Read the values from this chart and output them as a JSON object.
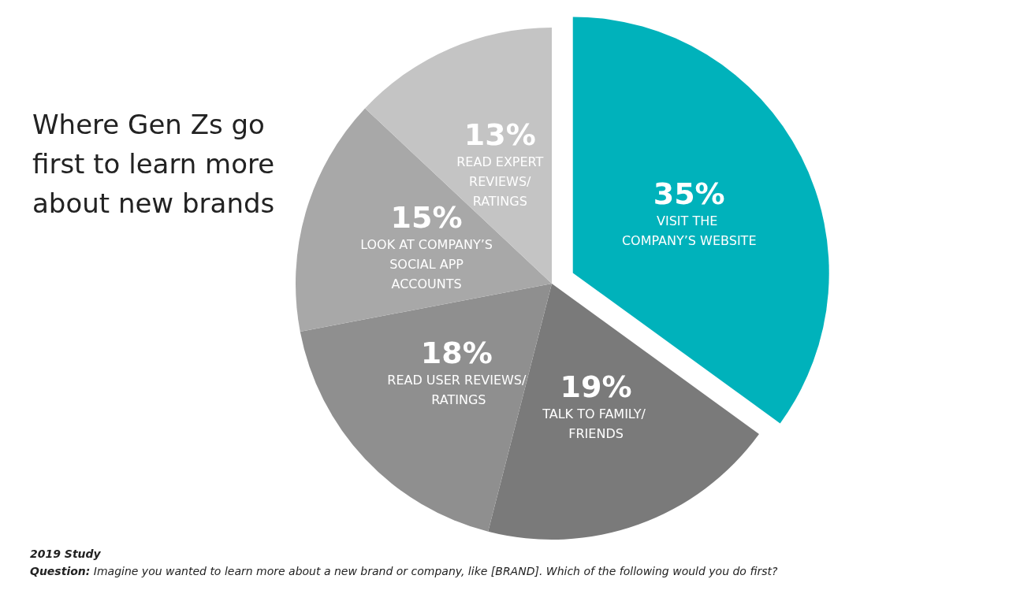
{
  "chart_data": {
    "type": "pie",
    "title": "Where Gen Zs go first to learn more about new brands",
    "categories": [
      "VISIT THE COMPANY’S WEBSITE",
      "TALK TO FAMILY/ FRIENDS",
      "READ USER REVIEWS/ RATINGS",
      "LOOK AT COMPANY’S SOCIAL APP ACCOUNTS",
      "READ EXPERT REVIEWS/ RATINGS"
    ],
    "values": [
      35,
      19,
      18,
      15,
      13
    ],
    "colors": [
      "#00b2bb",
      "#7a7a7a",
      "#8f8f8f",
      "#a8a8a8",
      "#c4c4c4"
    ],
    "value_labels": [
      "35%",
      "19%",
      "18%",
      "15%",
      "13%"
    ],
    "legend": false,
    "annotations": [
      "2019 Study",
      "Question: Imagine you wanted to learn more about a new brand or company, like [BRAND]. Which of the following would you do first?"
    ]
  }
}
